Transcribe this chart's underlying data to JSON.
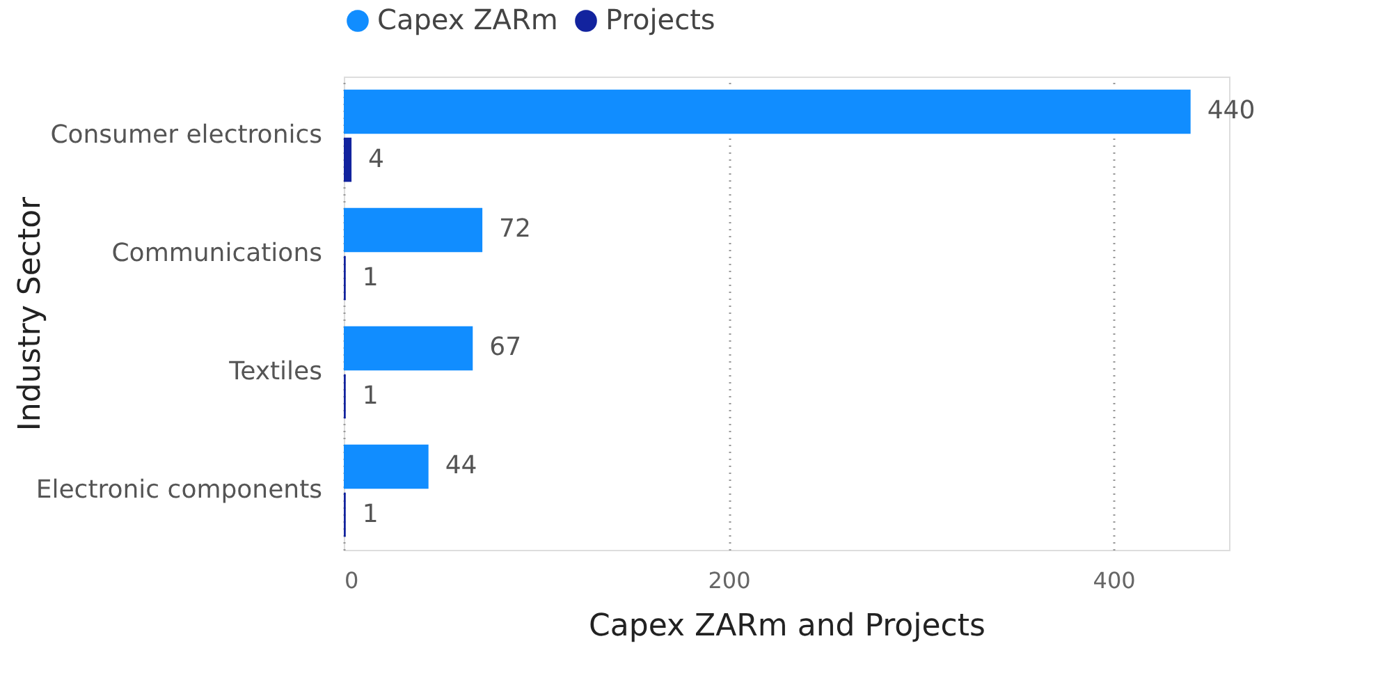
{
  "chart_data": {
    "type": "bar",
    "orientation": "horizontal",
    "xlabel": "Capex ZARm and Projects",
    "ylabel": "Industry Sector",
    "categories": [
      "Consumer electronics",
      "Communications",
      "Textiles",
      "Electronic components"
    ],
    "series": [
      {
        "name": "Capex ZARm",
        "color": "#118dff",
        "values": [
          440,
          72,
          67,
          44
        ]
      },
      {
        "name": "Projects",
        "color": "#12239e",
        "values": [
          4,
          1,
          1,
          1
        ]
      }
    ],
    "xlim": [
      0,
      460
    ],
    "xticks": [
      0,
      200,
      400
    ],
    "grid": "x",
    "legend": "top left",
    "data_labels": true
  }
}
